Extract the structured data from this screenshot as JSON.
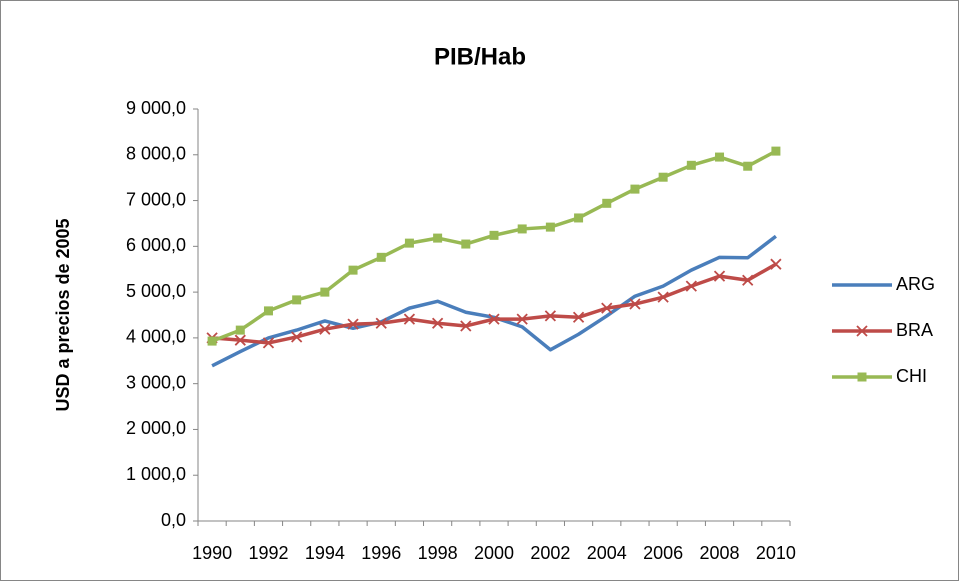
{
  "chart_data": {
    "type": "line",
    "title": "PIB/Hab",
    "y_label": "USD a precios de 2005",
    "categories": [
      "1990",
      null,
      "1992",
      null,
      "1994",
      null,
      "1996",
      null,
      "1998",
      null,
      "2000",
      null,
      "2002",
      null,
      "2004",
      null,
      "2006",
      null,
      "2008",
      null,
      "2010"
    ],
    "series": [
      {
        "name": "ARG",
        "color": "#4a7ebb",
        "marker": "none",
        "values": [
          3390,
          3700,
          4000,
          4170,
          4370,
          4210,
          4350,
          4650,
          4800,
          4560,
          4450,
          4240,
          3740,
          4080,
          4480,
          4910,
          5130,
          5480,
          5760,
          5750,
          6220
        ]
      },
      {
        "name": "BRA",
        "color": "#be4b48",
        "marker": "x",
        "values": [
          4000,
          3950,
          3890,
          4020,
          4190,
          4300,
          4320,
          4410,
          4320,
          4260,
          4410,
          4410,
          4480,
          4450,
          4650,
          4740,
          4890,
          5130,
          5350,
          5260,
          5610
        ]
      },
      {
        "name": "CHI",
        "color": "#98b954",
        "marker": "square",
        "values": [
          3930,
          4170,
          4590,
          4830,
          5000,
          5480,
          5760,
          6070,
          6180,
          6050,
          6240,
          6380,
          6420,
          6620,
          6940,
          7250,
          7510,
          7770,
          7950,
          7750,
          8080
        ]
      }
    ],
    "ylim": [
      0,
      9000
    ],
    "yticks": [
      {
        "value": 0,
        "label": "0,0"
      },
      {
        "value": 1000,
        "label": "1 000,0"
      },
      {
        "value": 2000,
        "label": "2 000,0"
      },
      {
        "value": 3000,
        "label": "3 000,0"
      },
      {
        "value": 4000,
        "label": "4 000,0"
      },
      {
        "value": 5000,
        "label": "5 000,0"
      },
      {
        "value": 6000,
        "label": "6 000,0"
      },
      {
        "value": 7000,
        "label": "7 000,0"
      },
      {
        "value": 8000,
        "label": "8 000,0"
      },
      {
        "value": 9000,
        "label": "9 000,0"
      }
    ],
    "grid": false,
    "legend": "right"
  }
}
